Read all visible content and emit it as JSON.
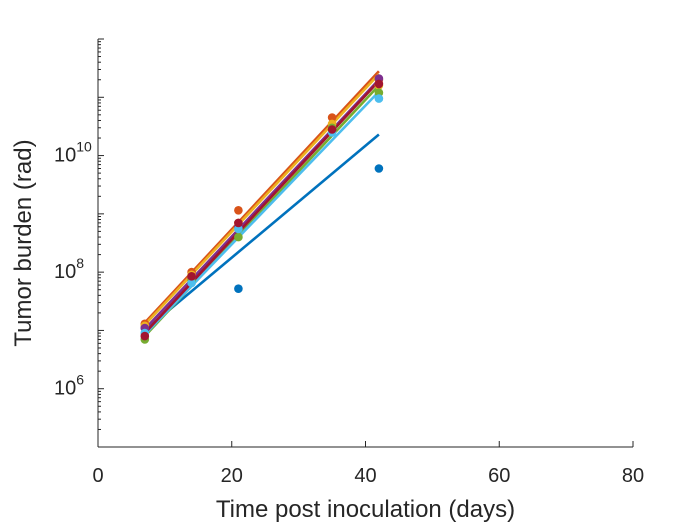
{
  "chart_data": {
    "type": "scatter",
    "title": "",
    "xlabel": "Time post inoculation (days)",
    "ylabel": "Tumor burden (rad)",
    "xlim": [
      0,
      80
    ],
    "ylim": [
      100000.0,
      1000000000000.0
    ],
    "yscale": "log",
    "grid": false,
    "xticks": [
      {
        "value": 0,
        "label": "0"
      },
      {
        "value": 20,
        "label": "20"
      },
      {
        "value": 40,
        "label": "40"
      },
      {
        "value": 60,
        "label": "60"
      },
      {
        "value": 80,
        "label": "80"
      }
    ],
    "yticks": [
      {
        "value": 1000000.0,
        "base": "10",
        "exp": "6"
      },
      {
        "value": 100000000.0,
        "base": "10",
        "exp": "8"
      },
      {
        "value": 10000000000.0,
        "base": "10",
        "exp": "10"
      }
    ],
    "series": [
      {
        "color": "#0072BD",
        "points": [
          [
            7,
            11000000.0
          ],
          [
            21,
            52000000.0
          ],
          [
            42,
            6000000000.0
          ]
        ],
        "fit": [
          [
            7,
            10000000.0
          ],
          [
            42,
            23000000000.0
          ]
        ]
      },
      {
        "color": "#D95319",
        "points": [
          [
            7,
            13000000.0
          ],
          [
            14,
            100000000.0
          ],
          [
            21,
            1150000000.0
          ],
          [
            35,
            45000000000.0
          ],
          [
            42,
            200000000000.0
          ]
        ],
        "fit": [
          [
            7,
            13500000.0
          ],
          [
            42,
            280000000000.0
          ]
        ]
      },
      {
        "color": "#EDB120",
        "points": [
          [
            7,
            12000000.0
          ],
          [
            14,
            90000000.0
          ],
          [
            21,
            700000000.0
          ],
          [
            35,
            35000000000.0
          ],
          [
            42,
            160000000000.0
          ]
        ],
        "fit": [
          [
            7,
            12500000.0
          ],
          [
            42,
            250000000000.0
          ]
        ]
      },
      {
        "color": "#7E2F8E",
        "points": [
          [
            7,
            11000000.0
          ],
          [
            14,
            80000000.0
          ],
          [
            21,
            600000000.0
          ],
          [
            35,
            28000000000.0
          ],
          [
            42,
            210000000000.0
          ]
        ],
        "fit": [
          [
            7,
            10500000.0
          ],
          [
            42,
            200000000000.0
          ]
        ]
      },
      {
        "color": "#77AC30",
        "points": [
          [
            7,
            7000000.0
          ],
          [
            14,
            70000000.0
          ],
          [
            21,
            400000000.0
          ],
          [
            35,
            30000000000.0
          ],
          [
            42,
            120000000000.0
          ]
        ],
        "fit": [
          [
            7,
            8000000.0
          ],
          [
            42,
            160000000000.0
          ]
        ]
      },
      {
        "color": "#4DBEEE",
        "points": [
          [
            7,
            9000000.0
          ],
          [
            14,
            65000000.0
          ],
          [
            21,
            550000000.0
          ],
          [
            35,
            25000000000.0
          ],
          [
            42,
            95000000000.0
          ]
        ],
        "fit": [
          [
            7,
            8500000.0
          ],
          [
            42,
            125000000000.0
          ]
        ]
      },
      {
        "color": "#A2142F",
        "points": [
          [
            7,
            8000000.0
          ],
          [
            14,
            85000000.0
          ],
          [
            21,
            700000000.0
          ],
          [
            35,
            28000000000.0
          ],
          [
            42,
            170000000000.0
          ]
        ],
        "fit": [
          [
            7,
            9000000.0
          ],
          [
            42,
            190000000000.0
          ]
        ]
      }
    ]
  }
}
